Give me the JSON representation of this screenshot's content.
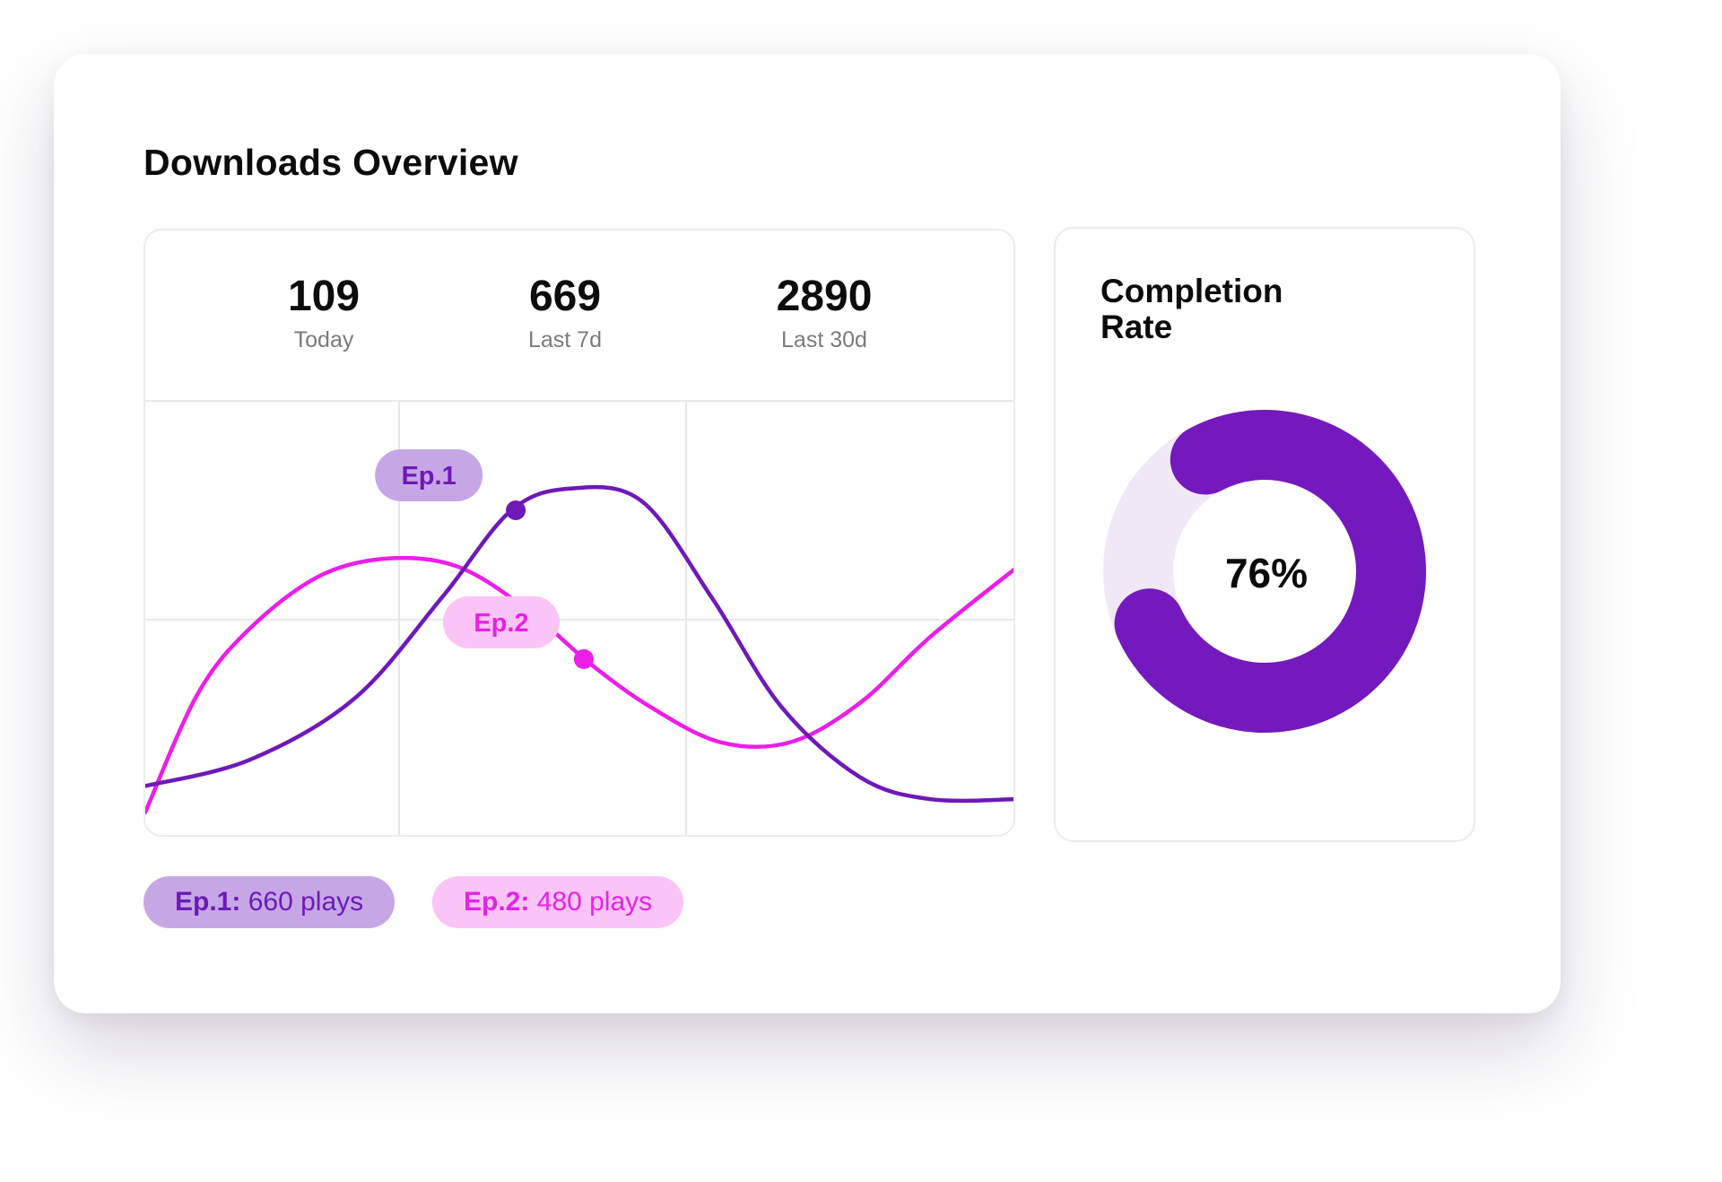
{
  "title": "Downloads Overview",
  "stats": [
    {
      "value": "109",
      "label": "Today"
    },
    {
      "value": "669",
      "label": "Last 7d"
    },
    {
      "value": "2890",
      "label": "Last 30d"
    }
  ],
  "colors": {
    "ep1": "#6e19b8",
    "ep2": "#ec1ee8",
    "ep1_pill_bg": "#c7a6e6",
    "ep2_pill_bg": "#fbc4f7",
    "donut_fill": "#7419bd",
    "donut_track": "#f1e8f7",
    "grid": "#e8e8ea"
  },
  "legend": [
    {
      "name": "Ep.1:",
      "value": "660 plays"
    },
    {
      "name": "Ep.2:",
      "value": "480 plays"
    }
  ],
  "chart_data": {
    "type": "line",
    "title": "",
    "xlabel": "",
    "ylabel": "",
    "xlim": [
      0,
      100
    ],
    "ylim": [
      0,
      100
    ],
    "grid": true,
    "series": [
      {
        "name": "Ep.1",
        "x": [
          0,
          12,
          24,
          34,
          42,
          49,
          57,
          65,
          73,
          82,
          90,
          100
        ],
        "y": [
          12,
          18,
          32,
          55,
          75,
          80,
          77,
          55,
          30,
          14,
          9,
          9
        ]
      },
      {
        "name": "Ep.2",
        "x": [
          0,
          6,
          12,
          20,
          28,
          36,
          44,
          51,
          58,
          66,
          74,
          82,
          90,
          100
        ],
        "y": [
          6,
          33,
          48,
          60,
          64,
          62,
          52,
          40,
          30,
          22,
          22,
          31,
          46,
          62
        ]
      }
    ],
    "markers": [
      {
        "series": "Ep.1",
        "x": 42.5,
        "y": 75,
        "label": "Ep.1"
      },
      {
        "series": "Ep.2",
        "x": 50.3,
        "y": 41,
        "label": "Ep.2"
      }
    ]
  },
  "completion": {
    "title_line1": "Completion",
    "title_line2": "Rate",
    "value_text": "76%",
    "fraction": 0.76
  }
}
